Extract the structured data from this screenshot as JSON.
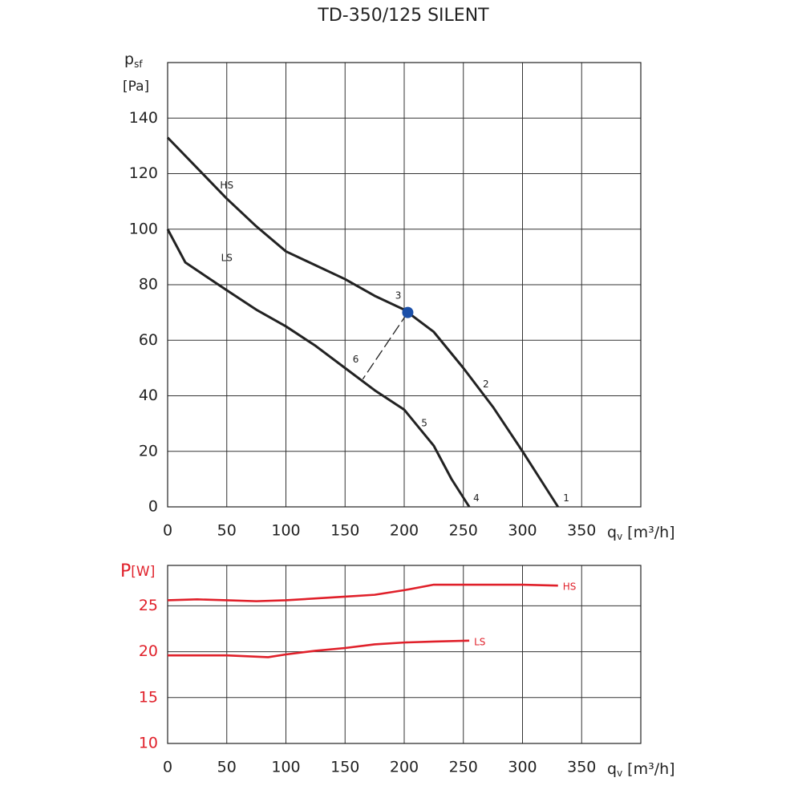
{
  "chart_data": [
    {
      "type": "line",
      "title": "TD-350/125 SILENT",
      "y_label": "p",
      "y_label_sub": "sf",
      "y_unit": "[Pa]",
      "x_label": "q",
      "x_label_sub": "v",
      "x_unit": "[m³/h]",
      "xlim": [
        0,
        400
      ],
      "xticks": [
        0,
        50,
        100,
        150,
        200,
        250,
        300,
        350
      ],
      "ylim": [
        0,
        160
      ],
      "yticks": [
        0,
        20,
        40,
        60,
        80,
        100,
        120,
        140
      ],
      "grid": true,
      "tick_color": "#222",
      "series": [
        {
          "name": "HS",
          "color": "#222",
          "x": [
            0,
            25,
            50,
            75,
            100,
            125,
            150,
            175,
            200,
            225,
            250,
            275,
            300,
            315,
            330
          ],
          "values": [
            133,
            122,
            111,
            101,
            92,
            87,
            82,
            76,
            71,
            63,
            50,
            36,
            20,
            10,
            0
          ]
        },
        {
          "name": "LS",
          "color": "#222",
          "x": [
            0,
            15,
            50,
            75,
            100,
            125,
            150,
            175,
            200,
            225,
            240,
            255
          ],
          "values": [
            100,
            88,
            78,
            71,
            65,
            58,
            50,
            42,
            35,
            22,
            10,
            0
          ]
        }
      ],
      "points": [
        {
          "x": 203,
          "y": 70,
          "color": "#1b4fa8"
        }
      ],
      "dashed_line": {
        "x": [
          203,
          165
        ],
        "y": [
          70,
          46
        ]
      },
      "annotations": [
        {
          "text": "1",
          "x": 337,
          "y": 3
        },
        {
          "text": "2",
          "x": 269,
          "y": 44
        },
        {
          "text": "3",
          "x": 195,
          "y": 76
        },
        {
          "text": "4",
          "x": 261,
          "y": 3
        },
        {
          "text": "5",
          "x": 217,
          "y": 30
        },
        {
          "text": "6",
          "x": 159,
          "y": 53
        }
      ]
    },
    {
      "type": "line",
      "y_label": "P",
      "y_unit": "[W]",
      "x_label": "q",
      "x_label_sub": "v",
      "x_unit": "[m³/h]",
      "xlim": [
        0,
        400
      ],
      "xticks": [
        0,
        50,
        100,
        150,
        200,
        250,
        300,
        350
      ],
      "ylim": [
        10,
        29.4
      ],
      "yticks": [
        10,
        15,
        20,
        25
      ],
      "grid": true,
      "tick_color": "#e0202a",
      "series": [
        {
          "name": "HS",
          "color": "#e0202a",
          "x": [
            0,
            25,
            50,
            75,
            100,
            125,
            150,
            175,
            200,
            225,
            250,
            300,
            330
          ],
          "values": [
            25.6,
            25.7,
            25.6,
            25.5,
            25.6,
            25.8,
            26.0,
            26.2,
            26.7,
            27.3,
            27.3,
            27.3,
            27.2
          ]
        },
        {
          "name": "LS",
          "color": "#e0202a",
          "x": [
            0,
            50,
            85,
            100,
            125,
            150,
            175,
            200,
            225,
            255
          ],
          "values": [
            19.6,
            19.6,
            19.4,
            19.7,
            20.1,
            20.4,
            20.8,
            21.0,
            21.1,
            21.2
          ]
        }
      ]
    }
  ]
}
